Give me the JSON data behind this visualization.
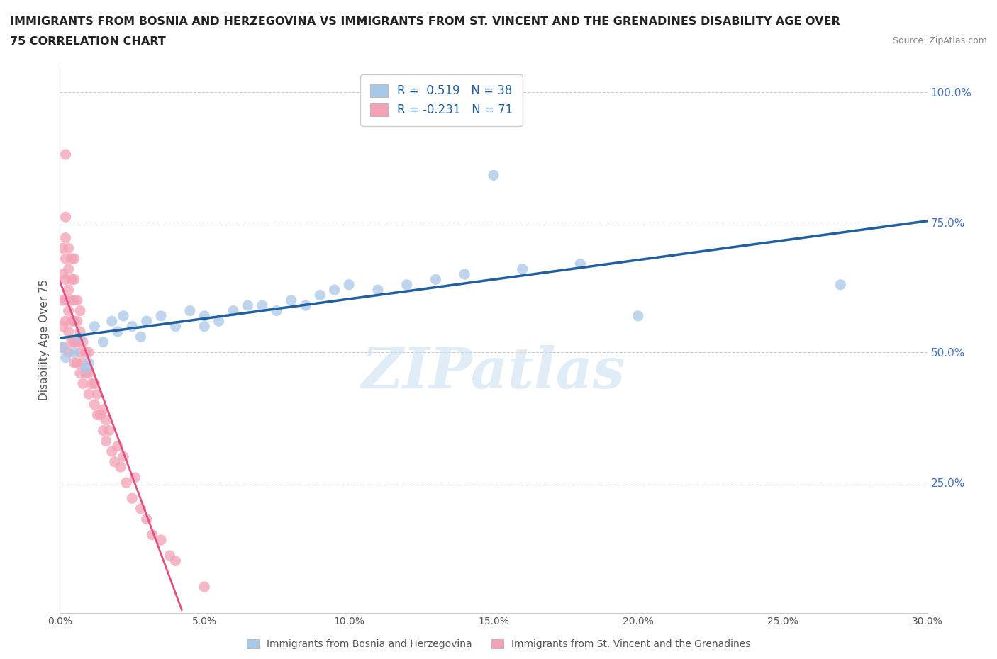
{
  "title_line1": "IMMIGRANTS FROM BOSNIA AND HERZEGOVINA VS IMMIGRANTS FROM ST. VINCENT AND THE GRENADINES DISABILITY AGE OVER",
  "title_line2": "75 CORRELATION CHART",
  "source_text": "Source: ZipAtlas.com",
  "ylabel": "Disability Age Over 75",
  "legend_label1": "Immigrants from Bosnia and Herzegovina",
  "legend_label2": "Immigrants from St. Vincent and the Grenadines",
  "r1": 0.519,
  "n1": 38,
  "r2": -0.231,
  "n2": 71,
  "color1": "#a8c8e8",
  "color2": "#f4a0b5",
  "color1_line": "#2060a0",
  "color2_line": "#e05080",
  "xlim": [
    0.0,
    0.3
  ],
  "ylim": [
    0.0,
    1.05
  ],
  "xtick_labels": [
    "0.0%",
    "5.0%",
    "10.0%",
    "15.0%",
    "20.0%",
    "25.0%",
    "30.0%"
  ],
  "xtick_values": [
    0.0,
    0.05,
    0.1,
    0.15,
    0.2,
    0.25,
    0.3
  ],
  "ytick_right_labels": [
    "100.0%",
    "75.0%",
    "50.0%",
    "25.0%"
  ],
  "ytick_right_values": [
    1.0,
    0.75,
    0.5,
    0.25
  ],
  "watermark": "ZIPatlas",
  "bosnia_x": [
    0.001,
    0.002,
    0.005,
    0.007,
    0.009,
    0.01,
    0.012,
    0.015,
    0.018,
    0.02,
    0.022,
    0.025,
    0.028,
    0.03,
    0.035,
    0.04,
    0.045,
    0.05,
    0.055,
    0.06,
    0.065,
    0.07,
    0.075,
    0.08,
    0.085,
    0.09,
    0.095,
    0.1,
    0.11,
    0.12,
    0.13,
    0.14,
    0.16,
    0.18,
    0.27,
    0.15,
    0.2,
    0.05
  ],
  "bosnia_y": [
    0.51,
    0.49,
    0.5,
    0.53,
    0.47,
    0.48,
    0.55,
    0.52,
    0.56,
    0.54,
    0.57,
    0.55,
    0.53,
    0.56,
    0.57,
    0.55,
    0.58,
    0.57,
    0.56,
    0.58,
    0.59,
    0.59,
    0.58,
    0.6,
    0.59,
    0.61,
    0.62,
    0.63,
    0.62,
    0.63,
    0.64,
    0.65,
    0.66,
    0.67,
    0.63,
    0.84,
    0.57,
    0.55
  ],
  "stvincent_x": [
    0.001,
    0.001,
    0.001,
    0.001,
    0.001,
    0.002,
    0.002,
    0.002,
    0.002,
    0.002,
    0.002,
    0.003,
    0.003,
    0.003,
    0.003,
    0.003,
    0.003,
    0.004,
    0.004,
    0.004,
    0.004,
    0.004,
    0.005,
    0.005,
    0.005,
    0.005,
    0.005,
    0.005,
    0.006,
    0.006,
    0.006,
    0.006,
    0.007,
    0.007,
    0.007,
    0.007,
    0.008,
    0.008,
    0.008,
    0.009,
    0.009,
    0.01,
    0.01,
    0.01,
    0.011,
    0.012,
    0.012,
    0.013,
    0.013,
    0.014,
    0.015,
    0.015,
    0.016,
    0.016,
    0.017,
    0.018,
    0.019,
    0.02,
    0.021,
    0.022,
    0.023,
    0.025,
    0.026,
    0.028,
    0.03,
    0.032,
    0.035,
    0.038,
    0.04,
    0.05,
    0.002
  ],
  "stvincent_y": [
    0.51,
    0.55,
    0.6,
    0.65,
    0.7,
    0.56,
    0.6,
    0.64,
    0.68,
    0.72,
    0.76,
    0.5,
    0.54,
    0.58,
    0.62,
    0.66,
    0.7,
    0.52,
    0.56,
    0.6,
    0.64,
    0.68,
    0.48,
    0.52,
    0.56,
    0.6,
    0.64,
    0.68,
    0.48,
    0.52,
    0.56,
    0.6,
    0.46,
    0.5,
    0.54,
    0.58,
    0.44,
    0.48,
    0.52,
    0.46,
    0.5,
    0.42,
    0.46,
    0.5,
    0.44,
    0.4,
    0.44,
    0.38,
    0.42,
    0.38,
    0.35,
    0.39,
    0.33,
    0.37,
    0.35,
    0.31,
    0.29,
    0.32,
    0.28,
    0.3,
    0.25,
    0.22,
    0.26,
    0.2,
    0.18,
    0.15,
    0.14,
    0.11,
    0.1,
    0.05,
    0.88
  ]
}
